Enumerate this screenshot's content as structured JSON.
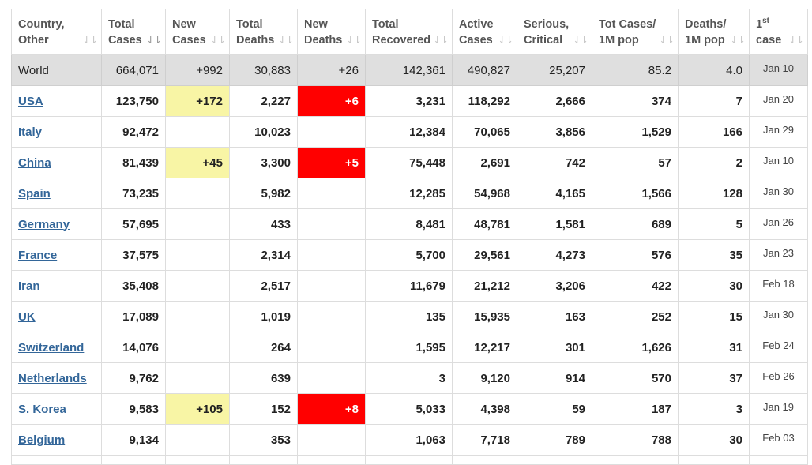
{
  "headers": [
    {
      "line1": "Country,",
      "line2": "Other",
      "sup": ""
    },
    {
      "line1": "Total",
      "line2": "Cases",
      "sup": "",
      "active": true
    },
    {
      "line1": "New",
      "line2": "Cases",
      "sup": ""
    },
    {
      "line1": "Total",
      "line2": "Deaths",
      "sup": ""
    },
    {
      "line1": "New",
      "line2": "Deaths",
      "sup": ""
    },
    {
      "line1": "Total",
      "line2": "Recovered",
      "sup": ""
    },
    {
      "line1": "Active",
      "line2": "Cases",
      "sup": ""
    },
    {
      "line1": "Serious,",
      "line2": "Critical",
      "sup": ""
    },
    {
      "line1": "Tot Cases/",
      "line2": "1M pop",
      "sup": ""
    },
    {
      "line1": "Deaths/",
      "line2": "1M pop",
      "sup": ""
    },
    {
      "line1": "1",
      "line2": "case",
      "sup": "st"
    }
  ],
  "sort_icon": "⇃⇂",
  "world": {
    "country": "World",
    "total_cases": "664,071",
    "new_cases": "+992",
    "total_deaths": "30,883",
    "new_deaths": "+26",
    "total_recovered": "142,361",
    "active_cases": "490,827",
    "serious": "25,207",
    "cases_per_m": "85.2",
    "deaths_per_m": "4.0",
    "first_case": "Jan 10"
  },
  "rows": [
    {
      "country": "USA",
      "total_cases": "123,750",
      "new_cases": "+172",
      "total_deaths": "2,227",
      "new_deaths": "+6",
      "total_recovered": "3,231",
      "active_cases": "118,292",
      "serious": "2,666",
      "cases_per_m": "374",
      "deaths_per_m": "7",
      "first_case": "Jan 20"
    },
    {
      "country": "Italy",
      "total_cases": "92,472",
      "new_cases": "",
      "total_deaths": "10,023",
      "new_deaths": "",
      "total_recovered": "12,384",
      "active_cases": "70,065",
      "serious": "3,856",
      "cases_per_m": "1,529",
      "deaths_per_m": "166",
      "first_case": "Jan 29"
    },
    {
      "country": "China",
      "total_cases": "81,439",
      "new_cases": "+45",
      "total_deaths": "3,300",
      "new_deaths": "+5",
      "total_recovered": "75,448",
      "active_cases": "2,691",
      "serious": "742",
      "cases_per_m": "57",
      "deaths_per_m": "2",
      "first_case": "Jan 10"
    },
    {
      "country": "Spain",
      "total_cases": "73,235",
      "new_cases": "",
      "total_deaths": "5,982",
      "new_deaths": "",
      "total_recovered": "12,285",
      "active_cases": "54,968",
      "serious": "4,165",
      "cases_per_m": "1,566",
      "deaths_per_m": "128",
      "first_case": "Jan 30"
    },
    {
      "country": "Germany",
      "total_cases": "57,695",
      "new_cases": "",
      "total_deaths": "433",
      "new_deaths": "",
      "total_recovered": "8,481",
      "active_cases": "48,781",
      "serious": "1,581",
      "cases_per_m": "689",
      "deaths_per_m": "5",
      "first_case": "Jan 26"
    },
    {
      "country": "France",
      "total_cases": "37,575",
      "new_cases": "",
      "total_deaths": "2,314",
      "new_deaths": "",
      "total_recovered": "5,700",
      "active_cases": "29,561",
      "serious": "4,273",
      "cases_per_m": "576",
      "deaths_per_m": "35",
      "first_case": "Jan 23"
    },
    {
      "country": "Iran",
      "total_cases": "35,408",
      "new_cases": "",
      "total_deaths": "2,517",
      "new_deaths": "",
      "total_recovered": "11,679",
      "active_cases": "21,212",
      "serious": "3,206",
      "cases_per_m": "422",
      "deaths_per_m": "30",
      "first_case": "Feb 18"
    },
    {
      "country": "UK",
      "total_cases": "17,089",
      "new_cases": "",
      "total_deaths": "1,019",
      "new_deaths": "",
      "total_recovered": "135",
      "active_cases": "15,935",
      "serious": "163",
      "cases_per_m": "252",
      "deaths_per_m": "15",
      "first_case": "Jan 30"
    },
    {
      "country": "Switzerland",
      "total_cases": "14,076",
      "new_cases": "",
      "total_deaths": "264",
      "new_deaths": "",
      "total_recovered": "1,595",
      "active_cases": "12,217",
      "serious": "301",
      "cases_per_m": "1,626",
      "deaths_per_m": "31",
      "first_case": "Feb 24"
    },
    {
      "country": "Netherlands",
      "total_cases": "9,762",
      "new_cases": "",
      "total_deaths": "639",
      "new_deaths": "",
      "total_recovered": "3",
      "active_cases": "9,120",
      "serious": "914",
      "cases_per_m": "570",
      "deaths_per_m": "37",
      "first_case": "Feb 26"
    },
    {
      "country": "S. Korea",
      "total_cases": "9,583",
      "new_cases": "+105",
      "total_deaths": "152",
      "new_deaths": "+8",
      "total_recovered": "5,033",
      "active_cases": "4,398",
      "serious": "59",
      "cases_per_m": "187",
      "deaths_per_m": "3",
      "first_case": "Jan 19"
    },
    {
      "country": "Belgium",
      "total_cases": "9,134",
      "new_cases": "",
      "total_deaths": "353",
      "new_deaths": "",
      "total_recovered": "1,063",
      "active_cases": "7,718",
      "serious": "789",
      "cases_per_m": "788",
      "deaths_per_m": "30",
      "first_case": "Feb 03"
    }
  ],
  "colors": {
    "new_cases_highlight": "#f8f5a5",
    "new_deaths_highlight": "#ff0000",
    "world_row_bg": "#dfdfdf",
    "link": "#336699"
  }
}
